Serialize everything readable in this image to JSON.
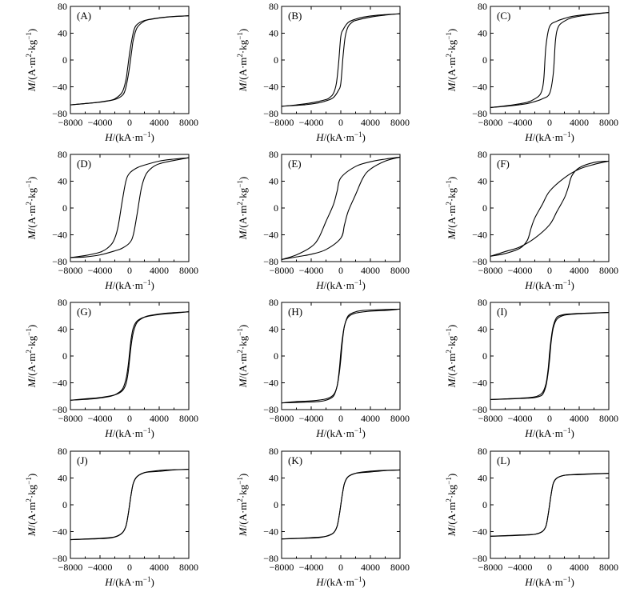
{
  "chart_data": [
    {
      "type": "line",
      "label": "(A)",
      "xlabel": "H/(kA·m⁻¹)",
      "ylabel": "M/(A·m²·kg⁻¹)",
      "xlim": [
        -8000,
        8000
      ],
      "ylim": [
        -80,
        80
      ],
      "xticks": [
        "−8000",
        "−4000",
        "0",
        "4000",
        "8000"
      ],
      "yticks": [
        "80",
        "40",
        "0",
        "−40",
        "−80"
      ],
      "series": [
        {
          "name": "upper branch",
          "x": [
            8000,
            5000,
            3000,
            2000,
            1000,
            500,
            300,
            0,
            -300,
            -600,
            -1000,
            -2000,
            -4000,
            -6000,
            -8000
          ],
          "y": [
            66,
            64,
            61,
            58,
            48,
            30,
            15,
            -10,
            -30,
            -45,
            -53,
            -59,
            -63,
            -65,
            -67
          ]
        },
        {
          "name": "lower branch",
          "x": [
            -8000,
            -5000,
            -3000,
            -2000,
            -1000,
            -500,
            -300,
            0,
            300,
            600,
            1000,
            2000,
            4000,
            6000,
            8000
          ],
          "y": [
            -67,
            -64,
            -61,
            -58,
            -48,
            -30,
            -15,
            10,
            30,
            45,
            53,
            59,
            63,
            65,
            66
          ]
        }
      ]
    },
    {
      "type": "line",
      "label": "(B)",
      "xlabel": "H/(kA·m⁻¹)",
      "ylabel": "M/(A·m²·kg⁻¹)",
      "xlim": [
        -8000,
        8000
      ],
      "ylim": [
        -80,
        80
      ],
      "xticks": [
        "−8000",
        "−4000",
        "0",
        "4000",
        "8000"
      ],
      "yticks": [
        "80",
        "40",
        "0",
        "−40",
        "−80"
      ],
      "series": [
        {
          "name": "upper branch",
          "x": [
            8000,
            5000,
            3000,
            2000,
            1000,
            300,
            0,
            -300,
            -600,
            -1000,
            -1500,
            -2000,
            -4000,
            -6000,
            -8000
          ],
          "y": [
            69,
            67,
            64,
            61,
            56,
            45,
            35,
            -5,
            -35,
            -50,
            -56,
            -59,
            -64,
            -67,
            -69
          ]
        },
        {
          "name": "lower branch",
          "x": [
            -8000,
            -5000,
            -3000,
            -2000,
            -1000,
            -300,
            0,
            300,
            600,
            1000,
            1500,
            2000,
            4000,
            6000,
            8000
          ],
          "y": [
            -69,
            -67,
            -64,
            -61,
            -56,
            -45,
            -35,
            5,
            35,
            50,
            56,
            59,
            64,
            67,
            69
          ]
        }
      ]
    },
    {
      "type": "line",
      "label": "(C)",
      "xlabel": "H/(kA·m⁻¹)",
      "ylabel": "M/(A·m²·kg⁻¹)",
      "xlim": [
        -8000,
        8000
      ],
      "ylim": [
        -80,
        80
      ],
      "xticks": [
        "−8000",
        "−4000",
        "0",
        "4000",
        "8000"
      ],
      "yticks": [
        "80",
        "40",
        "0",
        "−40",
        "−80"
      ],
      "series": [
        {
          "name": "upper branch",
          "x": [
            8000,
            5000,
            3000,
            2000,
            1000,
            0,
            -500,
            -800,
            -1200,
            -2000,
            -3000,
            -5000,
            -8000
          ],
          "y": [
            71,
            68,
            65,
            62,
            58,
            50,
            20,
            -30,
            -50,
            -58,
            -63,
            -67,
            -71
          ]
        },
        {
          "name": "lower branch",
          "x": [
            -8000,
            -5000,
            -3000,
            -2000,
            -1000,
            0,
            500,
            800,
            1200,
            2000,
            3000,
            5000,
            8000
          ],
          "y": [
            -71,
            -68,
            -65,
            -62,
            -58,
            -50,
            -20,
            30,
            50,
            58,
            63,
            67,
            71
          ]
        }
      ]
    },
    {
      "type": "line",
      "label": "(D)",
      "xlabel": "H/(kA·m⁻¹)",
      "ylabel": "M/(A·m²·kg⁻¹)",
      "xlim": [
        -8000,
        8000
      ],
      "ylim": [
        -80,
        80
      ],
      "xticks": [
        "−8000",
        "−4000",
        "0",
        "4000",
        "8000"
      ],
      "yticks": [
        "80",
        "40",
        "0",
        "−40",
        "−80"
      ],
      "series": [
        {
          "name": "upper branch",
          "x": [
            8000,
            6000,
            4000,
            2000,
            1000,
            0,
            -500,
            -1000,
            -1600,
            -2200,
            -3000,
            -4000,
            -6000,
            -8000
          ],
          "y": [
            75,
            73,
            70,
            64,
            60,
            52,
            40,
            10,
            -30,
            -50,
            -60,
            -66,
            -71,
            -74
          ]
        },
        {
          "name": "lower branch",
          "x": [
            -8000,
            -6000,
            -4000,
            -2000,
            -1000,
            0,
            500,
            1000,
            1600,
            2200,
            3000,
            4000,
            6000,
            8000
          ],
          "y": [
            -74,
            -73,
            -70,
            -64,
            -60,
            -52,
            -40,
            -10,
            30,
            50,
            60,
            66,
            71,
            75
          ]
        }
      ]
    },
    {
      "type": "line",
      "label": "(E)",
      "xlabel": "H/(kA·m⁻¹)",
      "ylabel": "M/(A·m²·kg⁻¹)",
      "xlim": [
        -8000,
        8000
      ],
      "ylim": [
        -80,
        80
      ],
      "xticks": [
        "−8000",
        "−4000",
        "0",
        "4000",
        "8000"
      ],
      "yticks": [
        "80",
        "40",
        "0",
        "−40",
        "−80"
      ],
      "series": [
        {
          "name": "upper branch",
          "x": [
            8000,
            6000,
            4000,
            2000,
            0,
            -500,
            -1000,
            -2000,
            -3000,
            -4000,
            -6000,
            -8000
          ],
          "y": [
            76,
            73,
            69,
            62,
            45,
            25,
            5,
            -20,
            -45,
            -58,
            -70,
            -77
          ]
        },
        {
          "name": "lower branch",
          "x": [
            -8000,
            -6000,
            -4000,
            -2000,
            0,
            500,
            1000,
            2000,
            3000,
            4000,
            6000,
            8000
          ],
          "y": [
            -77,
            -73,
            -69,
            -62,
            -45,
            -25,
            -5,
            20,
            45,
            58,
            70,
            76
          ]
        }
      ]
    },
    {
      "type": "line",
      "label": "(F)",
      "xlabel": "H/(kA·m⁻¹)",
      "ylabel": "M/(A·m²·kg⁻¹)",
      "xlim": [
        -8000,
        8000
      ],
      "ylim": [
        -80,
        80
      ],
      "xticks": [
        "−8000",
        "−4000",
        "0",
        "4000",
        "8000"
      ],
      "yticks": [
        "80",
        "40",
        "0",
        "−40",
        "−80"
      ],
      "series": [
        {
          "name": "upper branch",
          "x": [
            8000,
            6000,
            4000,
            2000,
            0,
            -1000,
            -2000,
            -2500,
            -3000,
            -4000,
            -6000,
            -8000
          ],
          "y": [
            70,
            65,
            58,
            45,
            25,
            5,
            -15,
            -30,
            -48,
            -60,
            -68,
            -72
          ]
        },
        {
          "name": "lower branch",
          "x": [
            -8000,
            -6000,
            -4000,
            -2000,
            0,
            1000,
            2000,
            2500,
            3000,
            4000,
            6000,
            8000
          ],
          "y": [
            -72,
            -65,
            -58,
            -45,
            -25,
            -5,
            15,
            30,
            48,
            60,
            68,
            70
          ]
        }
      ]
    },
    {
      "type": "line",
      "label": "(G)",
      "xlabel": "H/(kA·m⁻¹)",
      "ylabel": "M/(A·m²·kg⁻¹)",
      "xlim": [
        -8000,
        8000
      ],
      "ylim": [
        -80,
        80
      ],
      "xticks": [
        "−8000",
        "−4000",
        "0",
        "4000",
        "8000"
      ],
      "yticks": [
        "80",
        "40",
        "0",
        "−40",
        "−80"
      ],
      "series": [
        {
          "name": "upper branch",
          "x": [
            8000,
            5000,
            3000,
            2000,
            1000,
            500,
            200,
            0,
            -200,
            -500,
            -1000,
            -2000,
            -4000,
            -6000,
            -8000
          ],
          "y": [
            66,
            64,
            61,
            58,
            50,
            35,
            15,
            -5,
            -25,
            -42,
            -52,
            -58,
            -62,
            -64,
            -66
          ]
        },
        {
          "name": "lower branch",
          "x": [
            -8000,
            -5000,
            -3000,
            -2000,
            -1000,
            -500,
            -200,
            0,
            200,
            500,
            1000,
            2000,
            4000,
            6000,
            8000
          ],
          "y": [
            -66,
            -64,
            -61,
            -58,
            -50,
            -35,
            -15,
            5,
            25,
            42,
            52,
            58,
            62,
            64,
            66
          ]
        }
      ]
    },
    {
      "type": "line",
      "label": "(H)",
      "xlabel": "H/(kA·m⁻¹)",
      "ylabel": "M/(A·m²·kg⁻¹)",
      "xlim": [
        -8000,
        8000
      ],
      "ylim": [
        -80,
        80
      ],
      "xticks": [
        "−8000",
        "−4000",
        "0",
        "4000",
        "8000"
      ],
      "yticks": [
        "80",
        "40",
        "0",
        "−40",
        "−80"
      ],
      "series": [
        {
          "name": "upper branch",
          "x": [
            8000,
            5000,
            3000,
            2000,
            1000,
            500,
            200,
            0,
            -200,
            -500,
            -1000,
            -2000,
            -4000,
            -6000,
            -8000
          ],
          "y": [
            70,
            69,
            68,
            66,
            60,
            45,
            25,
            5,
            -20,
            -45,
            -58,
            -64,
            -67,
            -68,
            -70
          ]
        },
        {
          "name": "lower branch",
          "x": [
            -8000,
            -5000,
            -3000,
            -2000,
            -1000,
            -500,
            -200,
            0,
            200,
            500,
            1000,
            2000,
            4000,
            6000,
            8000
          ],
          "y": [
            -70,
            -69,
            -68,
            -66,
            -60,
            -45,
            -25,
            -5,
            20,
            45,
            58,
            64,
            67,
            68,
            70
          ]
        }
      ]
    },
    {
      "type": "line",
      "label": "(I)",
      "xlabel": "H/(kA·m⁻¹)",
      "ylabel": "M/(A·m²·kg⁻¹)",
      "xlim": [
        -8000,
        8000
      ],
      "ylim": [
        -80,
        80
      ],
      "xticks": [
        "−8000",
        "−4000",
        "0",
        "4000",
        "8000"
      ],
      "yticks": [
        "80",
        "40",
        "0",
        "−40",
        "−80"
      ],
      "series": [
        {
          "name": "upper branch",
          "x": [
            8000,
            5000,
            3000,
            2000,
            1000,
            500,
            200,
            0,
            -200,
            -500,
            -1000,
            -2000,
            -4000,
            -6000,
            -8000
          ],
          "y": [
            65,
            64,
            63,
            62,
            58,
            45,
            25,
            5,
            -20,
            -42,
            -55,
            -61,
            -63,
            -64,
            -65
          ]
        },
        {
          "name": "lower branch",
          "x": [
            -8000,
            -5000,
            -3000,
            -2000,
            -1000,
            -500,
            -200,
            0,
            200,
            500,
            1000,
            2000,
            4000,
            6000,
            8000
          ],
          "y": [
            -65,
            -64,
            -63,
            -62,
            -58,
            -45,
            -25,
            -5,
            20,
            42,
            55,
            61,
            63,
            64,
            65
          ]
        }
      ]
    },
    {
      "type": "line",
      "label": "(J)",
      "xlabel": "H/(kA·m⁻¹)",
      "ylabel": "M/(A·m²·kg⁻¹)",
      "xlim": [
        -8000,
        8000
      ],
      "ylim": [
        -80,
        80
      ],
      "xticks": [
        "−8000",
        "−4000",
        "0",
        "4000",
        "8000"
      ],
      "yticks": [
        "80",
        "40",
        "0",
        "−40",
        "−80"
      ],
      "series": [
        {
          "name": "upper branch",
          "x": [
            8000,
            5000,
            3000,
            2000,
            1000,
            500,
            200,
            0,
            -200,
            -500,
            -1000,
            -2000,
            -4000,
            -6000,
            -8000
          ],
          "y": [
            53,
            52,
            50,
            48,
            42,
            32,
            15,
            0,
            -15,
            -32,
            -42,
            -48,
            -50,
            -51,
            -52
          ]
        },
        {
          "name": "lower branch",
          "x": [
            -8000,
            -5000,
            -3000,
            -2000,
            -1000,
            -500,
            -200,
            0,
            200,
            500,
            1000,
            2000,
            4000,
            6000,
            8000
          ],
          "y": [
            -52,
            -51,
            -50,
            -48,
            -42,
            -32,
            -15,
            0,
            15,
            32,
            42,
            48,
            50,
            52,
            53
          ]
        }
      ]
    },
    {
      "type": "line",
      "label": "(K)",
      "xlabel": "H/(kA·m⁻¹)",
      "ylabel": "M/(A·m²·kg⁻¹)",
      "xlim": [
        -8000,
        8000
      ],
      "ylim": [
        -80,
        80
      ],
      "xticks": [
        "−8000",
        "−4000",
        "0",
        "4000",
        "8000"
      ],
      "yticks": [
        "80",
        "40",
        "0",
        "−40",
        "−80"
      ],
      "series": [
        {
          "name": "upper branch",
          "x": [
            8000,
            5000,
            3000,
            2000,
            1000,
            500,
            200,
            0,
            -200,
            -500,
            -1000,
            -2000,
            -4000,
            -6000,
            -8000
          ],
          "y": [
            52,
            51,
            49,
            47,
            42,
            32,
            15,
            0,
            -15,
            -32,
            -42,
            -47,
            -49,
            -50,
            -51
          ]
        },
        {
          "name": "lower branch",
          "x": [
            -8000,
            -5000,
            -3000,
            -2000,
            -1000,
            -500,
            -200,
            0,
            200,
            500,
            1000,
            2000,
            4000,
            6000,
            8000
          ],
          "y": [
            -51,
            -50,
            -49,
            -47,
            -42,
            -32,
            -15,
            0,
            15,
            32,
            42,
            47,
            49,
            51,
            52
          ]
        }
      ]
    },
    {
      "type": "line",
      "label": "(L)",
      "xlabel": "H/(kA·m⁻¹)",
      "ylabel": "M/(A·m²·kg⁻¹)",
      "xlim": [
        -8000,
        8000
      ],
      "ylim": [
        -80,
        80
      ],
      "xticks": [
        "−8000",
        "−4000",
        "0",
        "4000",
        "8000"
      ],
      "yticks": [
        "80",
        "40",
        "0",
        "−40",
        "−80"
      ],
      "series": [
        {
          "name": "upper branch",
          "x": [
            8000,
            5000,
            3000,
            2000,
            1000,
            500,
            200,
            0,
            -200,
            -500,
            -1000,
            -2000,
            -4000,
            -6000,
            -8000
          ],
          "y": [
            47,
            46,
            45,
            44,
            40,
            32,
            15,
            0,
            -15,
            -32,
            -40,
            -44,
            -45,
            -46,
            -47
          ]
        },
        {
          "name": "lower branch",
          "x": [
            -8000,
            -5000,
            -3000,
            -2000,
            -1000,
            -500,
            -200,
            0,
            200,
            500,
            1000,
            2000,
            4000,
            6000,
            8000
          ],
          "y": [
            -47,
            -46,
            -45,
            -44,
            -40,
            -32,
            -15,
            0,
            15,
            32,
            40,
            44,
            45,
            46,
            47
          ]
        }
      ]
    }
  ]
}
